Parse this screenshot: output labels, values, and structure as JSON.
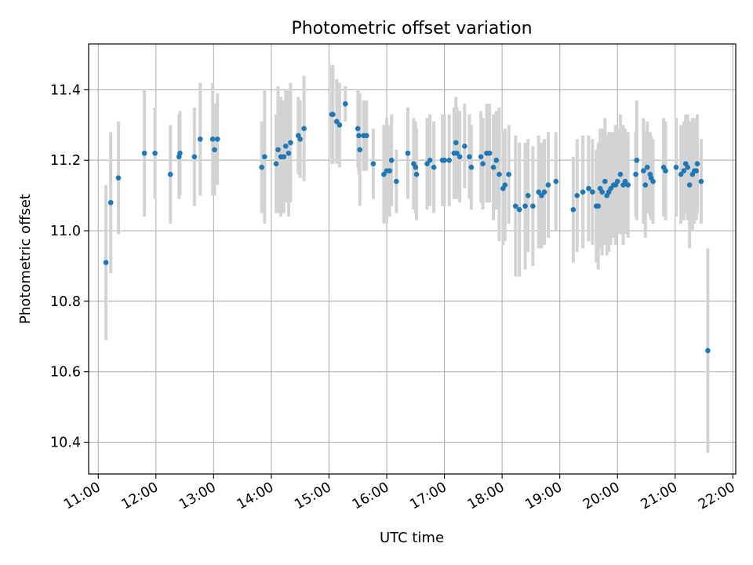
{
  "chart_data": {
    "type": "scatter",
    "title": "Photometric offset variation",
    "xlabel": "UTC time",
    "ylabel": "Photometric offset",
    "xlim": [
      "10:50",
      "22:03"
    ],
    "ylim": [
      10.31,
      11.53
    ],
    "xticks": [
      "11:00",
      "12:00",
      "13:00",
      "14:00",
      "15:00",
      "16:00",
      "17:00",
      "18:00",
      "19:00",
      "20:00",
      "21:00",
      "22:00"
    ],
    "yticks": [
      "10.4",
      "10.6",
      "10.8",
      "11.0",
      "11.2",
      "11.4"
    ],
    "grid": true,
    "colors": {
      "marker": "#1f77b4",
      "errorbar": "#d3d3d3",
      "grid": "#b0b0b0"
    },
    "points": [
      {
        "x": "11:08",
        "y": 10.91,
        "err": 0.22
      },
      {
        "x": "11:13",
        "y": 11.08,
        "err": 0.2
      },
      {
        "x": "11:21",
        "y": 11.15,
        "err": 0.16
      },
      {
        "x": "11:48",
        "y": 11.22,
        "err": 0.18
      },
      {
        "x": "11:59",
        "y": 11.22,
        "err": 0.13
      },
      {
        "x": "12:15",
        "y": 11.16,
        "err": 0.14
      },
      {
        "x": "12:24",
        "y": 11.21,
        "err": 0.12
      },
      {
        "x": "12:25",
        "y": 11.22,
        "err": 0.12
      },
      {
        "x": "12:40",
        "y": 11.21,
        "err": 0.14
      },
      {
        "x": "12:46",
        "y": 11.26,
        "err": 0.16
      },
      {
        "x": "12:59",
        "y": 11.26,
        "err": 0.16
      },
      {
        "x": "13:01",
        "y": 11.23,
        "err": 0.13
      },
      {
        "x": "13:04",
        "y": 11.26,
        "err": 0.13
      },
      {
        "x": "13:50",
        "y": 11.18,
        "err": 0.13
      },
      {
        "x": "13:53",
        "y": 11.21,
        "err": 0.19
      },
      {
        "x": "14:05",
        "y": 11.19,
        "err": 0.14
      },
      {
        "x": "14:07",
        "y": 11.23,
        "err": 0.18
      },
      {
        "x": "14:10",
        "y": 11.21,
        "err": 0.17
      },
      {
        "x": "14:13",
        "y": 11.21,
        "err": 0.16
      },
      {
        "x": "14:15",
        "y": 11.24,
        "err": 0.16
      },
      {
        "x": "14:18",
        "y": 11.22,
        "err": 0.18
      },
      {
        "x": "14:20",
        "y": 11.25,
        "err": 0.17
      },
      {
        "x": "14:28",
        "y": 11.27,
        "err": 0.11
      },
      {
        "x": "14:30",
        "y": 11.26,
        "err": 0.11
      },
      {
        "x": "14:34",
        "y": 11.29,
        "err": 0.15
      },
      {
        "x": "15:03",
        "y": 11.33,
        "err": 0.14
      },
      {
        "x": "15:04",
        "y": 11.33,
        "err": 0.14
      },
      {
        "x": "15:08",
        "y": 11.31,
        "err": 0.12
      },
      {
        "x": "15:11",
        "y": 11.3,
        "err": 0.12
      },
      {
        "x": "15:17",
        "y": 11.36,
        "err": 0.05
      },
      {
        "x": "15:30",
        "y": 11.29,
        "err": 0.11
      },
      {
        "x": "15:31",
        "y": 11.27,
        "err": 0.11
      },
      {
        "x": "15:32",
        "y": 11.23,
        "err": 0.16
      },
      {
        "x": "15:36",
        "y": 11.27,
        "err": 0.1
      },
      {
        "x": "15:39",
        "y": 11.27,
        "err": 0.1
      },
      {
        "x": "15:46",
        "y": 11.19,
        "err": 0.1
      },
      {
        "x": "15:57",
        "y": 11.16,
        "err": 0.14
      },
      {
        "x": "16:00",
        "y": 11.17,
        "err": 0.15
      },
      {
        "x": "16:03",
        "y": 11.17,
        "err": 0.13
      },
      {
        "x": "16:05",
        "y": 11.2,
        "err": 0.13
      },
      {
        "x": "16:10",
        "y": 11.14,
        "err": 0.09
      },
      {
        "x": "16:22",
        "y": 11.22,
        "err": 0.13
      },
      {
        "x": "16:28",
        "y": 11.19,
        "err": 0.13
      },
      {
        "x": "16:30",
        "y": 11.18,
        "err": 0.13
      },
      {
        "x": "16:31",
        "y": 11.16,
        "err": 0.13
      },
      {
        "x": "16:42",
        "y": 11.19,
        "err": 0.13
      },
      {
        "x": "16:45",
        "y": 11.2,
        "err": 0.13
      },
      {
        "x": "16:49",
        "y": 11.18,
        "err": 0.13
      },
      {
        "x": "16:58",
        "y": 11.2,
        "err": 0.13
      },
      {
        "x": "17:00",
        "y": 11.2,
        "err": 0.13
      },
      {
        "x": "17:05",
        "y": 11.2,
        "err": 0.13
      },
      {
        "x": "17:10",
        "y": 11.22,
        "err": 0.13
      },
      {
        "x": "17:12",
        "y": 11.25,
        "err": 0.13
      },
      {
        "x": "17:13",
        "y": 11.22,
        "err": 0.13
      },
      {
        "x": "17:16",
        "y": 11.21,
        "err": 0.13
      },
      {
        "x": "17:21",
        "y": 11.24,
        "err": 0.12
      },
      {
        "x": "17:26",
        "y": 11.21,
        "err": 0.12
      },
      {
        "x": "17:28",
        "y": 11.18,
        "err": 0.12
      },
      {
        "x": "17:38",
        "y": 11.21,
        "err": 0.13
      },
      {
        "x": "17:40",
        "y": 11.19,
        "err": 0.13
      },
      {
        "x": "17:44",
        "y": 11.22,
        "err": 0.14
      },
      {
        "x": "17:47",
        "y": 11.22,
        "err": 0.14
      },
      {
        "x": "17:51",
        "y": 11.18,
        "err": 0.15
      },
      {
        "x": "17:54",
        "y": 11.2,
        "err": 0.14
      },
      {
        "x": "17:57",
        "y": 11.16,
        "err": 0.19
      },
      {
        "x": "18:01",
        "y": 11.12,
        "err": 0.16
      },
      {
        "x": "18:03",
        "y": 11.13,
        "err": 0.16
      },
      {
        "x": "18:07",
        "y": 11.16,
        "err": 0.14
      },
      {
        "x": "18:14",
        "y": 11.07,
        "err": 0.2
      },
      {
        "x": "18:18",
        "y": 11.06,
        "err": 0.19
      },
      {
        "x": "18:24",
        "y": 11.07,
        "err": 0.18
      },
      {
        "x": "18:27",
        "y": 11.1,
        "err": 0.16
      },
      {
        "x": "18:32",
        "y": 11.07,
        "err": 0.17
      },
      {
        "x": "18:38",
        "y": 11.11,
        "err": 0.16
      },
      {
        "x": "18:41",
        "y": 11.1,
        "err": 0.15
      },
      {
        "x": "18:44",
        "y": 11.11,
        "err": 0.15
      },
      {
        "x": "18:48",
        "y": 11.13,
        "err": 0.15
      },
      {
        "x": "18:56",
        "y": 11.14,
        "err": 0.14
      },
      {
        "x": "19:14",
        "y": 11.06,
        "err": 0.15
      },
      {
        "x": "19:18",
        "y": 11.1,
        "err": 0.16
      },
      {
        "x": "19:24",
        "y": 11.11,
        "err": 0.16
      },
      {
        "x": "19:30",
        "y": 11.12,
        "err": 0.15
      },
      {
        "x": "19:34",
        "y": 11.11,
        "err": 0.15
      },
      {
        "x": "19:38",
        "y": 11.07,
        "err": 0.16
      },
      {
        "x": "19:40",
        "y": 11.07,
        "err": 0.18
      },
      {
        "x": "19:42",
        "y": 11.12,
        "err": 0.17
      },
      {
        "x": "19:44",
        "y": 11.11,
        "err": 0.18
      },
      {
        "x": "19:47",
        "y": 11.14,
        "err": 0.18
      },
      {
        "x": "19:49",
        "y": 11.1,
        "err": 0.17
      },
      {
        "x": "19:51",
        "y": 11.11,
        "err": 0.17
      },
      {
        "x": "19:53",
        "y": 11.12,
        "err": 0.16
      },
      {
        "x": "19:56",
        "y": 11.13,
        "err": 0.15
      },
      {
        "x": "19:58",
        "y": 11.13,
        "err": 0.17
      },
      {
        "x": "20:00",
        "y": 11.14,
        "err": 0.15
      },
      {
        "x": "20:03",
        "y": 11.16,
        "err": 0.17
      },
      {
        "x": "20:06",
        "y": 11.13,
        "err": 0.17
      },
      {
        "x": "20:08",
        "y": 11.14,
        "err": 0.15
      },
      {
        "x": "20:11",
        "y": 11.13,
        "err": 0.15
      },
      {
        "x": "20:19",
        "y": 11.16,
        "err": 0.12
      },
      {
        "x": "20:20",
        "y": 11.2,
        "err": 0.17
      },
      {
        "x": "20:27",
        "y": 11.17,
        "err": 0.15
      },
      {
        "x": "20:29",
        "y": 11.13,
        "err": 0.15
      },
      {
        "x": "20:31",
        "y": 11.18,
        "err": 0.13
      },
      {
        "x": "20:34",
        "y": 11.16,
        "err": 0.12
      },
      {
        "x": "20:35",
        "y": 11.15,
        "err": 0.12
      },
      {
        "x": "20:37",
        "y": 11.14,
        "err": 0.12
      },
      {
        "x": "20:48",
        "y": 11.18,
        "err": 0.14
      },
      {
        "x": "20:50",
        "y": 11.17,
        "err": 0.14
      },
      {
        "x": "21:01",
        "y": 11.18,
        "err": 0.14
      },
      {
        "x": "21:06",
        "y": 11.16,
        "err": 0.14
      },
      {
        "x": "21:09",
        "y": 11.17,
        "err": 0.14
      },
      {
        "x": "21:11",
        "y": 11.19,
        "err": 0.14
      },
      {
        "x": "21:13",
        "y": 11.18,
        "err": 0.15
      },
      {
        "x": "21:15",
        "y": 11.13,
        "err": 0.18
      },
      {
        "x": "21:18",
        "y": 11.16,
        "err": 0.16
      },
      {
        "x": "21:20",
        "y": 11.17,
        "err": 0.15
      },
      {
        "x": "21:22",
        "y": 11.17,
        "err": 0.14
      },
      {
        "x": "21:23",
        "y": 11.19,
        "err": 0.14
      },
      {
        "x": "21:27",
        "y": 11.14,
        "err": 0.12
      },
      {
        "x": "21:34",
        "y": 10.66,
        "err": 0.29
      }
    ]
  }
}
